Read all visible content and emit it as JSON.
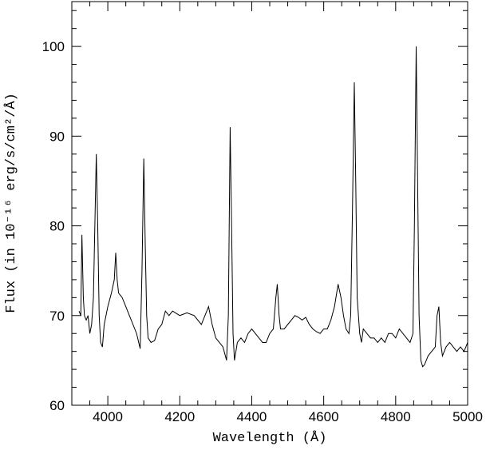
{
  "chart_data": {
    "type": "line",
    "xlabel": "Wavelength (Å)",
    "ylabel": "Flux (in 10⁻¹⁶ erg/s/cm²/Å)",
    "color": "#000000",
    "xlim": [
      3900,
      5000
    ],
    "ylim": [
      60,
      105
    ],
    "xticks": [
      4000,
      4200,
      4400,
      4600,
      4800,
      5000
    ],
    "yticks": [
      60,
      70,
      80,
      90,
      100
    ],
    "xticks_minor": [
      3900,
      3950,
      4050,
      4100,
      4150,
      4250,
      4300,
      4350,
      4450,
      4500,
      4550,
      4650,
      4700,
      4750,
      4850,
      4900,
      4950
    ],
    "yticks_minor": [
      62,
      64,
      66,
      68,
      72,
      74,
      76,
      78,
      82,
      84,
      86,
      88,
      92,
      94,
      96,
      98,
      102,
      104
    ],
    "x": [
      3920,
      3925,
      3928,
      3932,
      3935,
      3940,
      3945,
      3950,
      3955,
      3960,
      3965,
      3968,
      3972,
      3976,
      3980,
      3985,
      3990,
      3995,
      4000,
      4010,
      4018,
      4022,
      4026,
      4030,
      4040,
      4050,
      4060,
      4070,
      4080,
      4090,
      4095,
      4100,
      4104,
      4108,
      4112,
      4120,
      4130,
      4140,
      4150,
      4160,
      4170,
      4180,
      4200,
      4220,
      4240,
      4260,
      4270,
      4280,
      4290,
      4300,
      4310,
      4320,
      4330,
      4335,
      4340,
      4344,
      4348,
      4352,
      4360,
      4370,
      4380,
      4390,
      4400,
      4410,
      4420,
      4430,
      4440,
      4450,
      4460,
      4467,
      4471,
      4476,
      4480,
      4490,
      4500,
      4510,
      4520,
      4530,
      4540,
      4550,
      4560,
      4570,
      4580,
      4590,
      4600,
      4610,
      4620,
      4630,
      4640,
      4648,
      4655,
      4662,
      4670,
      4675,
      4680,
      4685,
      4689,
      4693,
      4700,
      4705,
      4710,
      4720,
      4730,
      4740,
      4750,
      4760,
      4770,
      4780,
      4790,
      4800,
      4810,
      4820,
      4830,
      4840,
      4848,
      4852,
      4857,
      4861,
      4865,
      4870,
      4875,
      4880,
      4890,
      4900,
      4910,
      4915,
      4920,
      4925,
      4930,
      4940,
      4950,
      4960,
      4970,
      4980,
      4990,
      5000
    ],
    "values": [
      70.5,
      70,
      79,
      72,
      70,
      69.5,
      70,
      68,
      69,
      72,
      82,
      88,
      80,
      70,
      67,
      66.5,
      69,
      70,
      71,
      72.5,
      74,
      77,
      74,
      72.5,
      72,
      71,
      70,
      69,
      68,
      66.3,
      75,
      87.5,
      78,
      70,
      67.5,
      67,
      67.2,
      68.5,
      69,
      70.5,
      70,
      70.5,
      70,
      70.3,
      70,
      69,
      70,
      71,
      69,
      67.5,
      67,
      66.5,
      65,
      70,
      91,
      80,
      68,
      65,
      67,
      67.5,
      67,
      68,
      68.5,
      68,
      67.5,
      67,
      67,
      68,
      68.5,
      72,
      73.5,
      70,
      68.5,
      68.5,
      69,
      69.5,
      70,
      69.8,
      69.5,
      69.8,
      69,
      68.5,
      68.2,
      68,
      68.5,
      68.5,
      69.5,
      71,
      73.5,
      72,
      70,
      68.5,
      68,
      70,
      82,
      96,
      85,
      72,
      68,
      67,
      68.5,
      68,
      67.5,
      67.5,
      67,
      67.5,
      67,
      68,
      68,
      67.5,
      68.5,
      68,
      67.5,
      67,
      68,
      80,
      100,
      85,
      70,
      65,
      64.3,
      64.5,
      65.5,
      66,
      66.5,
      70,
      71,
      67,
      65.5,
      66.5,
      67,
      66.5,
      66,
      66.5,
      66,
      67
    ]
  }
}
